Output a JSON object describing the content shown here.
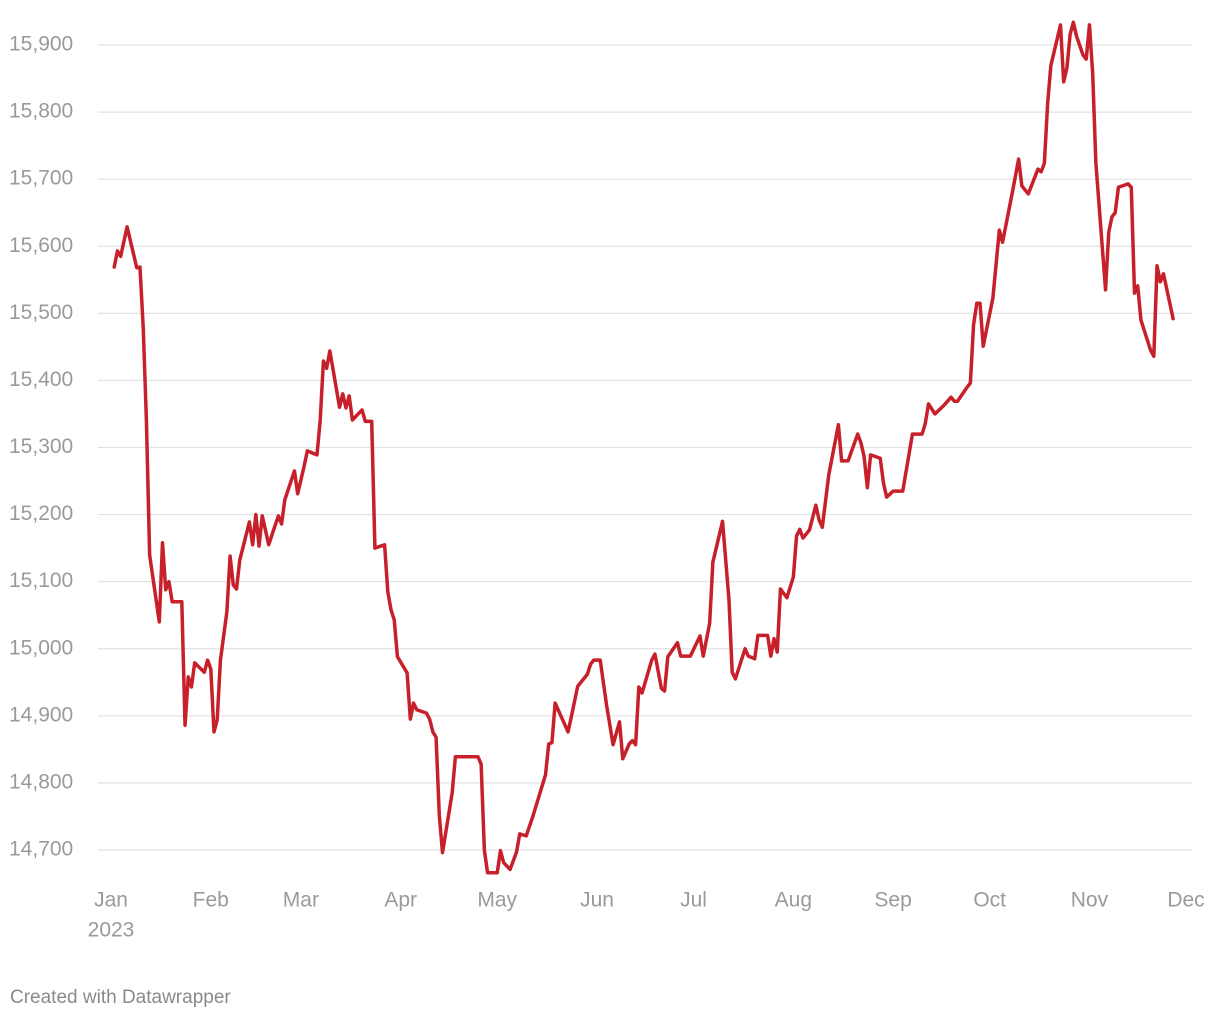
{
  "chart_data": {
    "type": "line",
    "color": "#c8202a",
    "grid": true,
    "x": [
      1,
      2,
      3,
      5,
      8,
      9,
      10,
      11,
      12,
      15,
      16,
      17,
      18,
      19,
      22,
      23,
      24,
      25,
      26,
      29,
      30,
      31,
      32,
      33,
      34,
      36,
      37,
      38,
      39,
      40,
      43,
      44,
      45,
      46,
      47,
      49,
      51,
      52,
      53,
      54,
      57,
      58,
      60,
      61,
      64,
      65,
      66,
      67,
      68,
      71,
      72,
      73,
      74,
      75,
      78,
      79,
      81,
      82,
      85,
      86,
      87,
      88,
      89,
      92,
      93,
      94,
      95,
      98,
      99,
      100,
      101,
      102,
      103,
      106,
      107,
      114,
      115,
      116,
      117,
      120,
      121,
      122,
      124,
      126,
      127,
      129,
      131,
      135,
      136,
      137,
      138,
      142,
      143,
      145,
      148,
      149,
      150,
      152,
      154,
      156,
      158,
      159,
      161,
      162,
      163,
      164,
      165,
      168,
      169,
      171,
      172,
      173,
      176,
      177,
      180,
      183,
      184,
      186,
      187,
      190,
      192,
      193,
      194,
      197,
      198,
      200,
      201,
      204,
      205,
      206,
      207,
      208,
      210,
      212,
      213,
      214,
      215,
      217,
      219,
      220,
      221,
      223,
      226,
      227,
      229,
      232,
      233,
      234,
      235,
      236,
      239,
      240,
      241,
      243,
      246,
      249,
      252,
      253,
      254,
      256,
      259,
      261,
      262,
      263,
      266,
      267,
      268,
      269,
      270,
      271,
      274,
      276,
      277,
      280,
      282,
      283,
      285,
      288,
      289,
      290,
      291,
      292,
      295,
      296,
      297,
      298,
      299,
      300,
      302,
      303,
      304,
      305,
      306,
      309,
      310,
      311,
      312,
      313,
      316,
      317,
      318,
      319,
      320,
      323,
      324,
      325,
      326,
      327,
      330
    ],
    "values": [
      15569,
      15593,
      15585,
      15629,
      15568,
      15569,
      15480,
      15341,
      15140,
      15040,
      15158,
      15088,
      15100,
      15070,
      15070,
      14886,
      14958,
      14943,
      14979,
      14965,
      14983,
      14970,
      14876,
      14894,
      14983,
      15055,
      15138,
      15095,
      15089,
      15132,
      15189,
      15155,
      15200,
      15153,
      15198,
      15155,
      15184,
      15198,
      15186,
      15222,
      15265,
      15231,
      15272,
      15295,
      15289,
      15341,
      15429,
      15418,
      15444,
      15360,
      15380,
      15359,
      15377,
      15341,
      15356,
      15339,
      15339,
      15150,
      15155,
      15085,
      15058,
      15043,
      14988,
      14964,
      14895,
      14919,
      14909,
      14904,
      14895,
      14876,
      14868,
      14752,
      14696,
      14785,
      14839,
      14839,
      14828,
      14700,
      14666,
      14666,
      14699,
      14681,
      14671,
      14697,
      14724,
      14721,
      14749,
      14812,
      14858,
      14860,
      14919,
      14876,
      14898,
      14944,
      14962,
      14977,
      14983,
      14983,
      14915,
      14857,
      14891,
      14836,
      14858,
      14863,
      14857,
      14943,
      14934,
      14983,
      14992,
      14941,
      14937,
      14988,
      15009,
      14989,
      14989,
      15019,
      14989,
      15038,
      15129,
      15190,
      15073,
      14965,
      14955,
      15000,
      14989,
      14985,
      15020,
      15020,
      14989,
      15015,
      14995,
      15089,
      15076,
      15107,
      15168,
      15178,
      15165,
      15177,
      15214,
      15192,
      15181,
      15259,
      15334,
      15280,
      15280,
      15320,
      15307,
      15286,
      15240,
      15289,
      15284,
      15247,
      15226,
      15235,
      15235,
      15320,
      15320,
      15336,
      15365,
      15350,
      15364,
      15375,
      15369,
      15369,
      15390,
      15396,
      15483,
      15515,
      15515,
      15451,
      15523,
      15624,
      15606,
      15679,
      15730,
      15690,
      15678,
      15715,
      15711,
      15724,
      15812,
      15869,
      15930,
      15845,
      15866,
      15916,
      15934,
      15913,
      15885,
      15879,
      15930,
      15858,
      15724,
      15535,
      15621,
      15644,
      15650,
      15688,
      15693,
      15688,
      15530,
      15541,
      15490,
      15445,
      15436,
      15571,
      15547,
      15559,
      15492
    ],
    "xlim": [
      0,
      334
    ],
    "xticks": [
      {
        "value": 0,
        "label": "Jan"
      },
      {
        "value": 31,
        "label": "Feb"
      },
      {
        "value": 59,
        "label": "Mar"
      },
      {
        "value": 90,
        "label": "Apr"
      },
      {
        "value": 120,
        "label": "May"
      },
      {
        "value": 151,
        "label": "Jun"
      },
      {
        "value": 181,
        "label": "Jul"
      },
      {
        "value": 212,
        "label": "Aug"
      },
      {
        "value": 243,
        "label": "Sep"
      },
      {
        "value": 273,
        "label": "Oct"
      },
      {
        "value": 304,
        "label": "Nov"
      },
      {
        "value": 334,
        "label": "Dec"
      }
    ],
    "x_year": "2023",
    "ylim": [
      14660,
      15940
    ],
    "yticks": [
      {
        "value": 14700,
        "label": "14,700"
      },
      {
        "value": 14800,
        "label": "14,800"
      },
      {
        "value": 14900,
        "label": "14,900"
      },
      {
        "value": 15000,
        "label": "15,000"
      },
      {
        "value": 15100,
        "label": "15,100"
      },
      {
        "value": 15200,
        "label": "15,200"
      },
      {
        "value": 15300,
        "label": "15,300"
      },
      {
        "value": 15400,
        "label": "15,400"
      },
      {
        "value": 15500,
        "label": "15,500"
      },
      {
        "value": 15600,
        "label": "15,600"
      },
      {
        "value": 15700,
        "label": "15,700"
      },
      {
        "value": 15800,
        "label": "15,800"
      },
      {
        "value": 15900,
        "label": "15,900"
      }
    ],
    "credit": "Created with Datawrapper"
  }
}
